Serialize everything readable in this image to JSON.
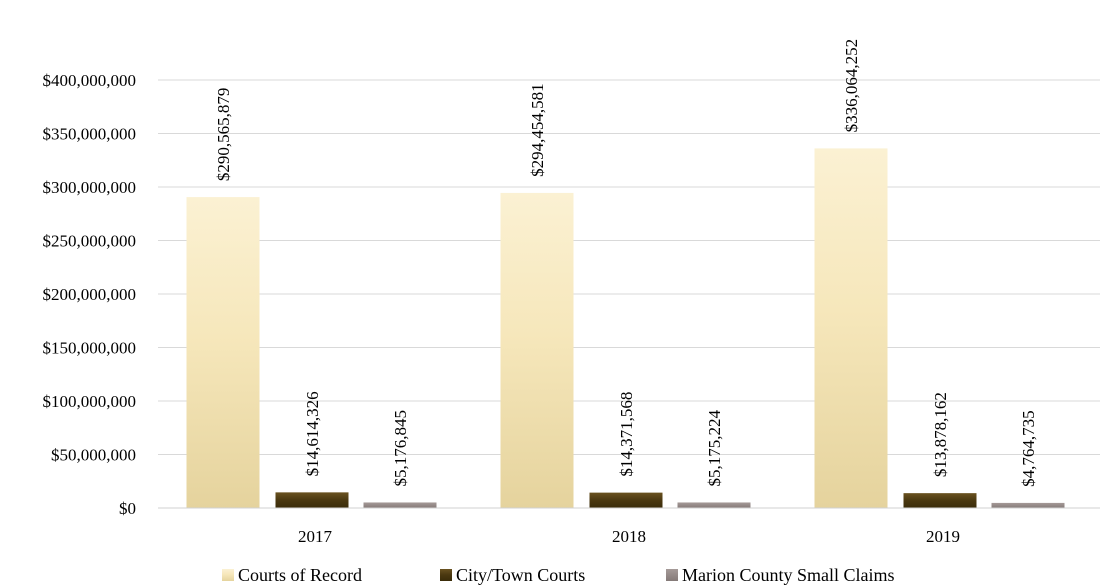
{
  "chart_data": {
    "type": "bar",
    "title": "",
    "xlabel": "",
    "ylabel": "",
    "categories": [
      "2017",
      "2018",
      "2019"
    ],
    "series": [
      {
        "name": "Courts of Record",
        "values": [
          290565879,
          294454581,
          336064252
        ],
        "labels": [
          "$290,565,879",
          "$294,454,581",
          "$336,064,252"
        ],
        "color": "#f3e4b4"
      },
      {
        "name": "City/Town Courts",
        "values": [
          14614326,
          14371568,
          13878162
        ],
        "labels": [
          "$14,614,326",
          "$14,371,568",
          "$13,878,162"
        ],
        "color": "#4f3c12"
      },
      {
        "name": "Marion County Small Claims",
        "values": [
          5176845,
          5175224,
          4764735
        ],
        "labels": [
          "$5,176,845",
          "$5,175,224",
          "$4,764,735"
        ],
        "color": "#958a88"
      }
    ],
    "ylim": [
      0,
      400000000
    ],
    "yticks": [
      0,
      50000000,
      100000000,
      150000000,
      200000000,
      250000000,
      300000000,
      350000000,
      400000000
    ],
    "ytick_labels": [
      "$0",
      "$50,000,000",
      "$100,000,000",
      "$150,000,000",
      "$200,000,000",
      "$250,000,000",
      "$300,000,000",
      "$350,000,000",
      "$400,000,000"
    ],
    "grid": true,
    "legend_position": "bottom"
  }
}
